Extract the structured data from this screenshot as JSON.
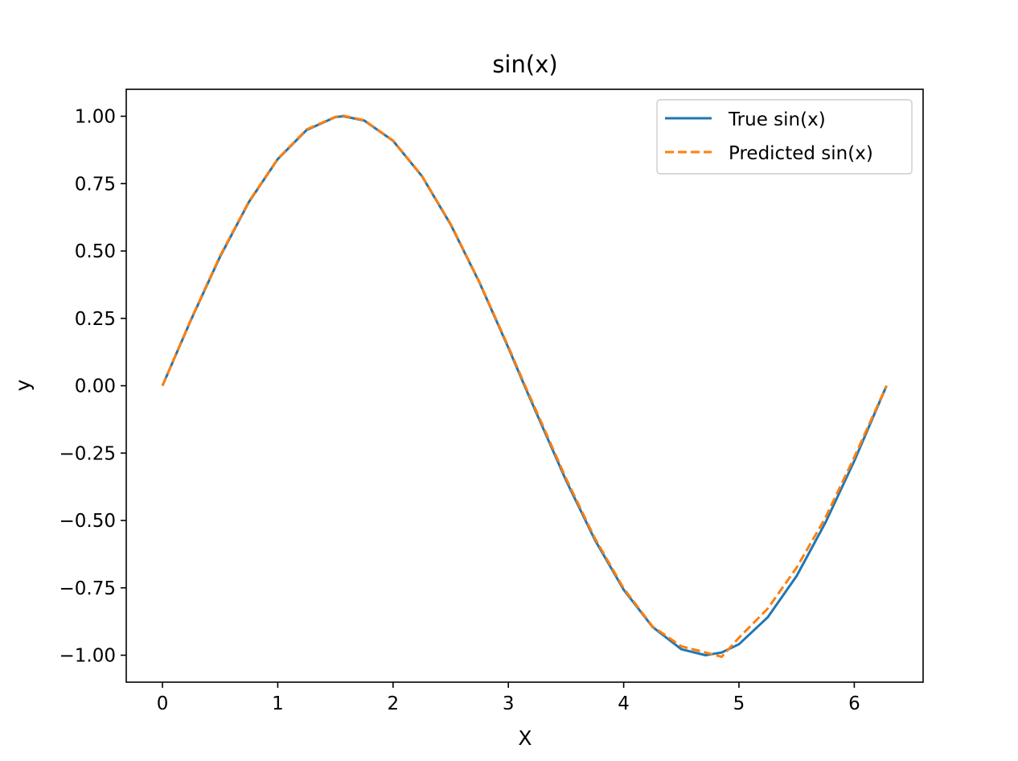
{
  "chart_data": {
    "type": "line",
    "title": "sin(x)",
    "xlabel": "X",
    "ylabel": "y",
    "xlim": [
      -0.314,
      6.597
    ],
    "ylim": [
      -1.1,
      1.1
    ],
    "x_ticks": [
      0,
      1,
      2,
      3,
      4,
      5,
      6
    ],
    "x_tick_labels": [
      "0",
      "1",
      "2",
      "3",
      "4",
      "5",
      "6"
    ],
    "y_ticks": [
      1.0,
      0.75,
      0.5,
      0.25,
      0.0,
      -0.25,
      -0.5,
      -0.75,
      -1.0
    ],
    "y_tick_labels": [
      "1.00",
      "0.75",
      "0.50",
      "0.25",
      "0.00",
      "−0.25",
      "−0.50",
      "−0.75",
      "−1.00"
    ],
    "grid": false,
    "legend_position": "top-right",
    "x": [
      0.0,
      0.25,
      0.5,
      0.75,
      1.0,
      1.25,
      1.5,
      1.57,
      1.75,
      2.0,
      2.25,
      2.5,
      2.75,
      3.0,
      3.14,
      3.25,
      3.5,
      3.75,
      4.0,
      4.25,
      4.5,
      4.71,
      4.85,
      5.0,
      5.25,
      5.5,
      5.75,
      6.0,
      6.28
    ],
    "series": [
      {
        "name": "True sin(x)",
        "color": "#1f77b4",
        "style": "solid",
        "values": [
          0.0,
          0.247,
          0.479,
          0.682,
          0.841,
          0.949,
          0.997,
          1.0,
          0.984,
          0.909,
          0.778,
          0.598,
          0.382,
          0.141,
          0.0,
          -0.108,
          -0.351,
          -0.572,
          -0.757,
          -0.895,
          -0.978,
          -1.0,
          -0.99,
          -0.959,
          -0.859,
          -0.706,
          -0.508,
          -0.279,
          0.0
        ]
      },
      {
        "name": "Predicted sin(x)",
        "color": "#ff7f0e",
        "style": "dashed",
        "values": [
          0.0,
          0.249,
          0.482,
          0.684,
          0.842,
          0.951,
          0.998,
          1.002,
          0.985,
          0.91,
          0.779,
          0.6,
          0.384,
          0.145,
          0.005,
          -0.101,
          -0.344,
          -0.566,
          -0.752,
          -0.893,
          -0.967,
          -0.99,
          -1.006,
          -0.935,
          -0.827,
          -0.675,
          -0.49,
          -0.265,
          0.0
        ]
      }
    ]
  }
}
